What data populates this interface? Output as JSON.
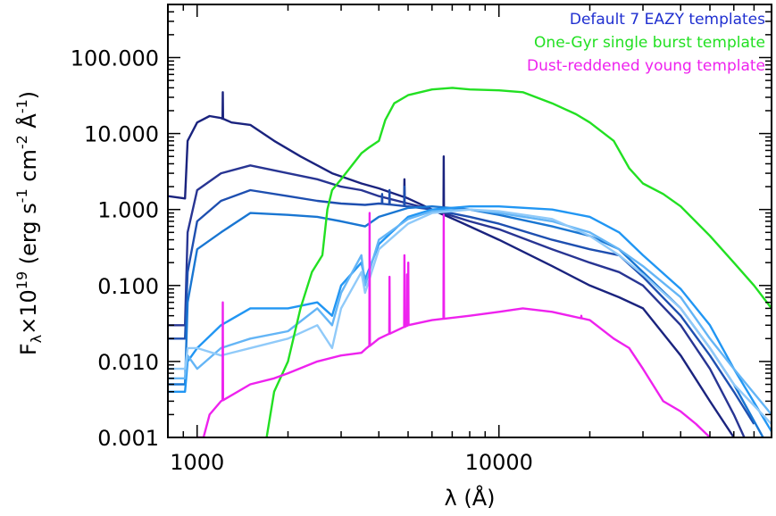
{
  "chart_data": {
    "type": "line",
    "xlabel": "λ (Å)",
    "ylabel": "F_λ×10^19 (erg s^-1 cm^-2 Å^-1)",
    "ylabel_parts": {
      "base": "F",
      "sub": "λ",
      "times": "×10",
      "exp": "19",
      "units_open": " (erg s",
      "neg1": "-1",
      "cm": " cm",
      "neg2": "-2",
      "ang": " Å",
      "neg1b": "-1",
      "units_close": ")"
    },
    "xlim": [
      800,
      80000
    ],
    "ylim": [
      0.001,
      500
    ],
    "xscale": "log",
    "yscale": "log",
    "x_ticks": [
      1000,
      10000
    ],
    "x_tick_labels": [
      "1000",
      "10000"
    ],
    "y_ticks": [
      0.001,
      0.01,
      0.1,
      1,
      10,
      100
    ],
    "y_tick_labels": [
      "0.001",
      "0.010",
      "0.100",
      "1.000",
      "10.000",
      "100.000"
    ],
    "legend_position": "top-right",
    "legend": [
      {
        "label": "Default 7 EAZY templates",
        "color": "#1f2fd0"
      },
      {
        "label": "One-Gyr single burst template",
        "color": "#22e022"
      },
      {
        "label": "Dust-reddened young template",
        "color": "#ee22ee"
      }
    ],
    "series": [
      {
        "color": "#1a237e",
        "points": [
          [
            800,
            1.5
          ],
          [
            912,
            1.4
          ],
          [
            930,
            8
          ],
          [
            1000,
            14
          ],
          [
            1100,
            17
          ],
          [
            1200,
            16
          ],
          [
            1300,
            14
          ],
          [
            1500,
            13
          ],
          [
            1800,
            8
          ],
          [
            2200,
            5
          ],
          [
            2800,
            3
          ],
          [
            3500,
            2.2
          ],
          [
            4000,
            1.9
          ],
          [
            5000,
            1.4
          ],
          [
            6000,
            1.0
          ],
          [
            8000,
            0.6
          ],
          [
            10000,
            0.4
          ],
          [
            15000,
            0.18
          ],
          [
            20000,
            0.1
          ],
          [
            25000,
            0.07
          ],
          [
            30000,
            0.05
          ],
          [
            40000,
            0.012
          ],
          [
            50000,
            0.003
          ],
          [
            60000,
            0.001
          ]
        ],
        "lines": [
          [
            1216,
            35
          ],
          [
            4861,
            2.5
          ],
          [
            6563,
            5
          ]
        ]
      },
      {
        "color": "#283593",
        "points": [
          [
            800,
            0.03
          ],
          [
            912,
            0.03
          ],
          [
            930,
            0.5
          ],
          [
            1000,
            1.8
          ],
          [
            1200,
            3
          ],
          [
            1500,
            3.8
          ],
          [
            2000,
            3.0
          ],
          [
            2500,
            2.5
          ],
          [
            3000,
            2.0
          ],
          [
            3500,
            1.8
          ],
          [
            4000,
            1.5
          ],
          [
            5000,
            1.2
          ],
          [
            6000,
            1.0
          ],
          [
            8000,
            0.7
          ],
          [
            10000,
            0.55
          ],
          [
            15000,
            0.3
          ],
          [
            20000,
            0.2
          ],
          [
            25000,
            0.15
          ],
          [
            30000,
            0.1
          ],
          [
            40000,
            0.03
          ],
          [
            50000,
            0.008
          ],
          [
            60000,
            0.002
          ],
          [
            65000,
            0.001
          ]
        ],
        "lines": []
      },
      {
        "color": "#1e4fb0",
        "points": [
          [
            800,
            0.02
          ],
          [
            912,
            0.02
          ],
          [
            930,
            0.15
          ],
          [
            1000,
            0.7
          ],
          [
            1200,
            1.3
          ],
          [
            1500,
            1.8
          ],
          [
            2000,
            1.5
          ],
          [
            2500,
            1.3
          ],
          [
            3000,
            1.2
          ],
          [
            3600,
            1.15
          ],
          [
            4000,
            1.2
          ],
          [
            5000,
            1.1
          ],
          [
            6000,
            1.0
          ],
          [
            8000,
            0.8
          ],
          [
            10000,
            0.65
          ],
          [
            15000,
            0.4
          ],
          [
            20000,
            0.3
          ],
          [
            25000,
            0.25
          ],
          [
            30000,
            0.13
          ],
          [
            40000,
            0.04
          ],
          [
            50000,
            0.012
          ],
          [
            60000,
            0.004
          ],
          [
            70000,
            0.0015
          ]
        ],
        "lines": [
          [
            4101,
            1.6
          ],
          [
            4340,
            1.8
          ],
          [
            4861,
            2.0
          ]
        ]
      },
      {
        "color": "#1976d2",
        "points": [
          [
            800,
            0.005
          ],
          [
            912,
            0.005
          ],
          [
            930,
            0.06
          ],
          [
            1000,
            0.3
          ],
          [
            1200,
            0.5
          ],
          [
            1500,
            0.9
          ],
          [
            2000,
            0.85
          ],
          [
            2500,
            0.8
          ],
          [
            3000,
            0.7
          ],
          [
            3600,
            0.6
          ],
          [
            4000,
            0.8
          ],
          [
            5000,
            1.05
          ],
          [
            6000,
            1.1
          ],
          [
            8000,
            1.0
          ],
          [
            10000,
            0.85
          ],
          [
            15000,
            0.6
          ],
          [
            20000,
            0.45
          ],
          [
            25000,
            0.3
          ],
          [
            30000,
            0.15
          ],
          [
            40000,
            0.05
          ],
          [
            50000,
            0.015
          ],
          [
            60000,
            0.005
          ],
          [
            75000,
            0.001
          ]
        ],
        "lines": []
      },
      {
        "color": "#2196f3",
        "points": [
          [
            800,
            0.004
          ],
          [
            912,
            0.004
          ],
          [
            930,
            0.01
          ],
          [
            1000,
            0.015
          ],
          [
            1200,
            0.03
          ],
          [
            1500,
            0.05
          ],
          [
            2000,
            0.05
          ],
          [
            2500,
            0.06
          ],
          [
            2800,
            0.04
          ],
          [
            3000,
            0.1
          ],
          [
            3500,
            0.2
          ],
          [
            3600,
            0.12
          ],
          [
            4000,
            0.35
          ],
          [
            5000,
            0.8
          ],
          [
            6000,
            1.0
          ],
          [
            8000,
            1.1
          ],
          [
            10000,
            1.1
          ],
          [
            15000,
            1.0
          ],
          [
            20000,
            0.8
          ],
          [
            25000,
            0.5
          ],
          [
            30000,
            0.25
          ],
          [
            40000,
            0.09
          ],
          [
            50000,
            0.03
          ],
          [
            60000,
            0.008
          ],
          [
            80000,
            0.0012
          ]
        ],
        "lines": []
      },
      {
        "color": "#64b5f6",
        "points": [
          [
            800,
            0.006
          ],
          [
            912,
            0.006
          ],
          [
            930,
            0.012
          ],
          [
            1000,
            0.008
          ],
          [
            1200,
            0.015
          ],
          [
            1500,
            0.02
          ],
          [
            2000,
            0.025
          ],
          [
            2500,
            0.05
          ],
          [
            2800,
            0.03
          ],
          [
            3000,
            0.08
          ],
          [
            3500,
            0.25
          ],
          [
            3600,
            0.1
          ],
          [
            4000,
            0.4
          ],
          [
            5000,
            0.75
          ],
          [
            6000,
            0.95
          ],
          [
            8000,
            1.0
          ],
          [
            10000,
            0.9
          ],
          [
            15000,
            0.7
          ],
          [
            20000,
            0.5
          ],
          [
            25000,
            0.3
          ],
          [
            30000,
            0.18
          ],
          [
            40000,
            0.07
          ],
          [
            50000,
            0.02
          ],
          [
            60000,
            0.008
          ],
          [
            80000,
            0.002
          ]
        ],
        "lines": []
      },
      {
        "color": "#90caf9",
        "points": [
          [
            800,
            0.008
          ],
          [
            912,
            0.008
          ],
          [
            930,
            0.015
          ],
          [
            1000,
            0.015
          ],
          [
            1200,
            0.012
          ],
          [
            1500,
            0.015
          ],
          [
            2000,
            0.02
          ],
          [
            2500,
            0.03
          ],
          [
            2800,
            0.015
          ],
          [
            3000,
            0.05
          ],
          [
            3500,
            0.15
          ],
          [
            3600,
            0.08
          ],
          [
            4000,
            0.3
          ],
          [
            5000,
            0.65
          ],
          [
            6000,
            0.9
          ],
          [
            8000,
            1.0
          ],
          [
            10000,
            0.95
          ],
          [
            15000,
            0.75
          ],
          [
            20000,
            0.45
          ],
          [
            25000,
            0.25
          ],
          [
            30000,
            0.14
          ],
          [
            40000,
            0.05
          ],
          [
            50000,
            0.015
          ],
          [
            60000,
            0.005
          ],
          [
            80000,
            0.0015
          ]
        ],
        "lines": []
      },
      {
        "color": "#22e022",
        "points": [
          [
            1700,
            0.001
          ],
          [
            1800,
            0.004
          ],
          [
            2000,
            0.01
          ],
          [
            2200,
            0.05
          ],
          [
            2400,
            0.15
          ],
          [
            2600,
            0.25
          ],
          [
            2700,
            1.0
          ],
          [
            2800,
            1.8
          ],
          [
            3000,
            2.5
          ],
          [
            3500,
            5.5
          ],
          [
            3700,
            6.5
          ],
          [
            4000,
            8
          ],
          [
            4200,
            15
          ],
          [
            4500,
            25
          ],
          [
            5000,
            32
          ],
          [
            6000,
            38
          ],
          [
            7000,
            40
          ],
          [
            8000,
            38
          ],
          [
            10000,
            37
          ],
          [
            12000,
            35
          ],
          [
            15000,
            25
          ],
          [
            18000,
            18
          ],
          [
            20000,
            14
          ],
          [
            24000,
            8
          ],
          [
            27000,
            3.5
          ],
          [
            30000,
            2.2
          ],
          [
            35000,
            1.6
          ],
          [
            40000,
            1.1
          ],
          [
            50000,
            0.45
          ],
          [
            60000,
            0.2
          ],
          [
            70000,
            0.1
          ],
          [
            80000,
            0.05
          ]
        ],
        "lines": []
      },
      {
        "color": "#ee22ee",
        "points": [
          [
            1000,
            0.001
          ],
          [
            1050,
            0.001
          ],
          [
            1100,
            0.002
          ],
          [
            1200,
            0.003
          ],
          [
            1500,
            0.005
          ],
          [
            1800,
            0.006
          ],
          [
            2000,
            0.007
          ],
          [
            2500,
            0.01
          ],
          [
            3000,
            0.012
          ],
          [
            3500,
            0.013
          ],
          [
            3646,
            0.015
          ],
          [
            4000,
            0.02
          ],
          [
            5000,
            0.03
          ],
          [
            6000,
            0.035
          ],
          [
            8000,
            0.04
          ],
          [
            10000,
            0.045
          ],
          [
            12000,
            0.05
          ],
          [
            15000,
            0.045
          ],
          [
            20000,
            0.035
          ],
          [
            24000,
            0.02
          ],
          [
            27000,
            0.015
          ],
          [
            30000,
            0.008
          ],
          [
            35000,
            0.003
          ],
          [
            40000,
            0.0022
          ],
          [
            45000,
            0.0015
          ],
          [
            50000,
            0.001
          ]
        ],
        "lines": [
          [
            1216,
            0.06
          ],
          [
            3727,
            0.9
          ],
          [
            4340,
            0.13
          ],
          [
            4861,
            0.25
          ],
          [
            4959,
            0.14
          ],
          [
            5007,
            0.2
          ],
          [
            6563,
            0.85
          ],
          [
            18750,
            0.04
          ]
        ]
      }
    ]
  }
}
